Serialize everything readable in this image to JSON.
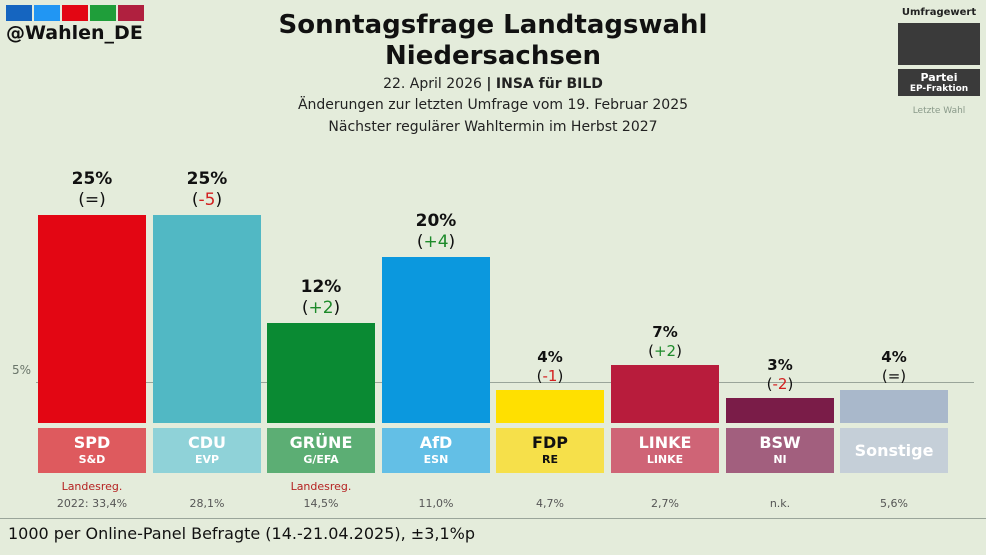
{
  "header": {
    "handle": "@Wahlen_DE",
    "logo_colors": [
      "#1565c0",
      "#2196f3",
      "#e30613",
      "#1f9e3a",
      "#b0203f"
    ],
    "title_line1": "Sonntagsfrage Landtagswahl",
    "title_line2": "Niedersachsen",
    "date": "22. April 2026",
    "separator": "|",
    "pollster": "INSA für BILD",
    "changes_note": "Änderungen zur letzten Umfrage vom 19. Februar 2025",
    "next_election": "Nächster regulärer Wahltermin im Herbst 2027"
  },
  "legend": {
    "poll_value": "Umfragewert",
    "party": "Partei",
    "ep_group": "EP-Fraktion",
    "last_election": "Letzte Wahl"
  },
  "reference_line": {
    "label": "5%",
    "value": 5
  },
  "chart_data": {
    "type": "bar",
    "title": "Sonntagsfrage Landtagswahl Niedersachsen",
    "ylim": [
      0,
      25
    ],
    "categories": [
      "SPD",
      "CDU",
      "GRÜNE",
      "AfD",
      "FDP",
      "LINKE",
      "BSW",
      "Sonstige"
    ],
    "values": [
      25,
      25,
      12,
      20,
      4,
      7,
      3,
      4
    ],
    "bars": [
      {
        "party": "SPD",
        "ep": "S&D",
        "value": 25,
        "value_label": "25%",
        "change_inner": "=",
        "change_sign": "neutral",
        "color": "#e30613",
        "label_bg": "#de5a5e",
        "label_color": "#ffffff",
        "note": "Landesreg.",
        "last": "2022: 33,4%"
      },
      {
        "party": "CDU",
        "ep": "EVP",
        "value": 25,
        "value_label": "25%",
        "change_inner": "-5",
        "change_sign": "negative",
        "color": "#51b8c4",
        "label_bg": "#8fd2d8",
        "label_color": "#ffffff",
        "note": "",
        "last": "28,1%"
      },
      {
        "party": "GRÜNE",
        "ep": "G/EFA",
        "value": 12,
        "value_label": "12%",
        "change_inner": "+2",
        "change_sign": "positive",
        "color": "#0a8a33",
        "label_bg": "#5cae74",
        "label_color": "#ffffff",
        "note": "Landesreg.",
        "last": "14,5%"
      },
      {
        "party": "AfD",
        "ep": "ESN",
        "value": 20,
        "value_label": "20%",
        "change_inner": "+4",
        "change_sign": "positive",
        "color": "#0b98de",
        "label_bg": "#63bfe6",
        "label_color": "#ffffff",
        "note": "",
        "last": "11,0%"
      },
      {
        "party": "FDP",
        "ep": "RE",
        "value": 4,
        "value_label": "4%",
        "change_inner": "-1",
        "change_sign": "negative",
        "color": "#ffe000",
        "label_bg": "#f6e04a",
        "label_color": "#111111",
        "note": "",
        "last": "4,7%"
      },
      {
        "party": "LINKE",
        "ep": "LINKE",
        "value": 7,
        "value_label": "7%",
        "change_inner": "+2",
        "change_sign": "positive",
        "color": "#b81c3c",
        "label_bg": "#cf6476",
        "label_color": "#ffffff",
        "note": "",
        "last": "2,7%"
      },
      {
        "party": "BSW",
        "ep": "NI",
        "value": 3,
        "value_label": "3%",
        "change_inner": "-2",
        "change_sign": "negative",
        "color": "#7a1c48",
        "label_bg": "#a25f7e",
        "label_color": "#ffffff",
        "note": "",
        "last": "n.k."
      },
      {
        "party": "Sonstige",
        "ep": "",
        "value": 4,
        "value_label": "4%",
        "change_inner": "=",
        "change_sign": "neutral",
        "color": "#a9b8cb",
        "label_bg": "#c5cfd8",
        "label_color": "#ffffff",
        "note": "",
        "last": "5,6%"
      }
    ],
    "change_colors": {
      "positive": "#1d8a2a",
      "negative": "#d32020",
      "neutral": "#111111"
    }
  },
  "footer": {
    "text": "1000 per Online-Panel Befragte (14.-21.04.2025), ±3,1%p"
  }
}
